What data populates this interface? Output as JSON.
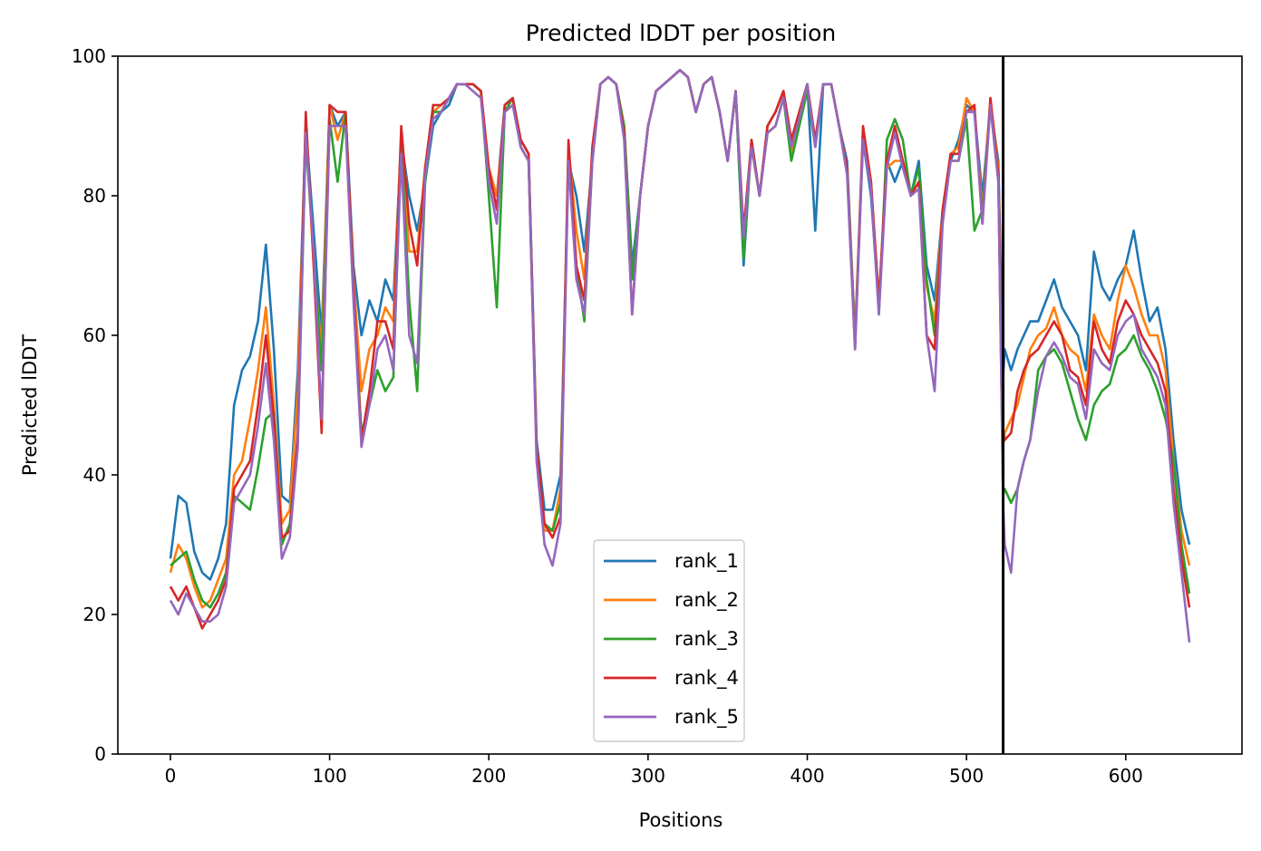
{
  "chart_data": {
    "type": "line",
    "title": "Predicted lDDT per position",
    "xlabel": "Positions",
    "ylabel": "Predicted lDDT",
    "xlim": [
      -33,
      673
    ],
    "ylim": [
      0,
      100
    ],
    "xticks": [
      0,
      100,
      200,
      300,
      400,
      500,
      600
    ],
    "yticks": [
      0,
      20,
      40,
      60,
      80,
      100
    ],
    "grid": false,
    "legend_position": "lower-center",
    "chain_break_x": 523,
    "chain_break_color": "#000000",
    "x_positions": [
      0,
      5,
      10,
      15,
      20,
      25,
      30,
      35,
      40,
      45,
      50,
      55,
      60,
      65,
      70,
      75,
      80,
      85,
      90,
      95,
      100,
      105,
      110,
      115,
      120,
      125,
      130,
      135,
      140,
      145,
      150,
      155,
      160,
      165,
      170,
      175,
      180,
      185,
      190,
      195,
      200,
      205,
      210,
      215,
      220,
      225,
      230,
      235,
      240,
      245,
      250,
      255,
      260,
      265,
      270,
      275,
      280,
      285,
      290,
      295,
      300,
      305,
      310,
      315,
      320,
      325,
      330,
      335,
      340,
      345,
      350,
      355,
      360,
      365,
      370,
      375,
      380,
      385,
      390,
      395,
      400,
      405,
      410,
      415,
      420,
      425,
      430,
      435,
      440,
      445,
      450,
      455,
      460,
      465,
      470,
      475,
      480,
      485,
      490,
      495,
      500,
      505,
      510,
      515,
      520,
      523,
      524,
      528,
      532,
      536,
      540,
      545,
      550,
      555,
      560,
      565,
      570,
      575,
      580,
      585,
      590,
      595,
      600,
      605,
      610,
      615,
      620,
      625,
      630,
      635,
      640
    ],
    "series": [
      {
        "name": "rank_1",
        "color": "#1f77b4",
        "values": [
          28,
          37,
          36,
          29,
          26,
          25,
          28,
          33,
          50,
          55,
          57,
          62,
          73,
          58,
          37,
          36,
          55,
          90,
          75,
          60,
          93,
          90,
          92,
          70,
          60,
          65,
          62,
          68,
          65,
          88,
          80,
          75,
          82,
          90,
          92,
          93,
          96,
          96,
          96,
          95,
          82,
          80,
          93,
          94,
          88,
          86,
          45,
          35,
          35,
          40,
          85,
          80,
          72,
          85,
          96,
          97,
          96,
          90,
          70,
          80,
          90,
          95,
          96,
          97,
          98,
          97,
          92,
          96,
          97,
          92,
          85,
          95,
          70,
          88,
          80,
          90,
          92,
          95,
          88,
          92,
          96,
          75,
          96,
          96,
          90,
          85,
          60,
          88,
          80,
          64,
          85,
          82,
          85,
          80,
          85,
          70,
          65,
          78,
          85,
          88,
          93,
          92,
          80,
          93,
          85,
          54,
          58,
          55,
          58,
          60,
          62,
          62,
          65,
          68,
          64,
          62,
          60,
          55,
          72,
          67,
          65,
          68,
          70,
          75,
          68,
          62,
          64,
          58,
          45,
          35,
          30
        ]
      },
      {
        "name": "rank_2",
        "color": "#ff7f0e",
        "values": [
          26,
          30,
          28,
          24,
          21,
          22,
          25,
          28,
          40,
          42,
          48,
          55,
          64,
          50,
          33,
          35,
          52,
          90,
          70,
          58,
          93,
          88,
          92,
          68,
          52,
          58,
          60,
          64,
          62,
          89,
          72,
          72,
          84,
          92,
          93,
          94,
          96,
          96,
          96,
          95,
          84,
          80,
          92,
          94,
          87,
          85,
          44,
          32,
          32,
          38,
          87,
          75,
          68,
          86,
          96,
          97,
          96,
          90,
          68,
          80,
          90,
          95,
          96,
          97,
          98,
          97,
          92,
          96,
          97,
          92,
          85,
          95,
          73,
          87,
          80,
          90,
          92,
          95,
          86,
          92,
          96,
          87,
          96,
          96,
          90,
          84,
          60,
          89,
          82,
          64,
          84,
          85,
          85,
          80,
          82,
          67,
          62,
          78,
          86,
          87,
          94,
          92,
          78,
          94,
          84,
          44,
          46,
          48,
          50,
          54,
          58,
          60,
          61,
          64,
          60,
          58,
          57,
          52,
          63,
          60,
          58,
          65,
          70,
          67,
          63,
          60,
          60,
          55,
          42,
          32,
          27
        ]
      },
      {
        "name": "rank_3",
        "color": "#2ca02c",
        "values": [
          27,
          28,
          29,
          25,
          22,
          21,
          23,
          26,
          37,
          36,
          35,
          41,
          48,
          49,
          30,
          33,
          45,
          88,
          72,
          55,
          91,
          82,
          92,
          66,
          46,
          50,
          55,
          52,
          54,
          88,
          65,
          52,
          82,
          92,
          92,
          94,
          96,
          96,
          96,
          95,
          80,
          64,
          92,
          94,
          87,
          85,
          44,
          33,
          32,
          36,
          86,
          70,
          62,
          85,
          96,
          97,
          96,
          90,
          68,
          80,
          90,
          95,
          96,
          97,
          98,
          97,
          92,
          96,
          97,
          92,
          85,
          95,
          71,
          88,
          80,
          89,
          90,
          94,
          85,
          90,
          95,
          87,
          96,
          96,
          90,
          84,
          59,
          88,
          82,
          63,
          88,
          91,
          88,
          80,
          84,
          68,
          60,
          77,
          85,
          85,
          91,
          75,
          78,
          93,
          82,
          37,
          38,
          36,
          38,
          42,
          45,
          55,
          57,
          58,
          56,
          52,
          48,
          45,
          50,
          52,
          53,
          57,
          58,
          60,
          57,
          55,
          52,
          48,
          42,
          30,
          23
        ]
      },
      {
        "name": "rank_4",
        "color": "#d62728",
        "values": [
          24,
          22,
          24,
          21,
          18,
          20,
          22,
          25,
          38,
          40,
          42,
          50,
          60,
          48,
          31,
          32,
          46,
          92,
          70,
          46,
          93,
          92,
          92,
          67,
          45,
          52,
          62,
          62,
          58,
          90,
          76,
          70,
          84,
          93,
          93,
          94,
          96,
          96,
          96,
          95,
          84,
          78,
          93,
          94,
          88,
          86,
          44,
          33,
          31,
          34,
          88,
          70,
          65,
          87,
          96,
          97,
          96,
          89,
          63,
          80,
          90,
          95,
          96,
          97,
          98,
          97,
          92,
          96,
          97,
          92,
          85,
          95,
          75,
          88,
          80,
          90,
          92,
          95,
          88,
          92,
          96,
          88,
          96,
          96,
          90,
          84,
          58,
          90,
          82,
          65,
          85,
          90,
          85,
          80,
          82,
          60,
          58,
          78,
          86,
          86,
          92,
          93,
          76,
          94,
          83,
          46,
          45,
          46,
          52,
          55,
          57,
          58,
          60,
          62,
          60,
          55,
          54,
          50,
          62,
          58,
          56,
          62,
          65,
          63,
          60,
          58,
          56,
          52,
          38,
          28,
          21
        ]
      },
      {
        "name": "rank_5",
        "color": "#9467bd",
        "values": [
          22,
          20,
          23,
          21,
          19,
          19,
          20,
          24,
          36,
          38,
          40,
          47,
          56,
          45,
          28,
          31,
          44,
          89,
          72,
          48,
          90,
          90,
          90,
          65,
          44,
          50,
          58,
          60,
          55,
          86,
          60,
          56,
          83,
          91,
          92,
          94,
          96,
          96,
          95,
          94,
          82,
          76,
          92,
          93,
          87,
          85,
          42,
          30,
          27,
          33,
          85,
          68,
          63,
          85,
          96,
          97,
          96,
          88,
          63,
          80,
          90,
          95,
          96,
          97,
          98,
          97,
          92,
          96,
          97,
          92,
          85,
          95,
          74,
          87,
          80,
          89,
          90,
          94,
          87,
          91,
          96,
          87,
          96,
          96,
          90,
          83,
          58,
          88,
          81,
          63,
          84,
          89,
          84,
          80,
          81,
          60,
          52,
          76,
          85,
          85,
          92,
          92,
          76,
          93,
          82,
          36,
          30,
          26,
          38,
          42,
          45,
          52,
          57,
          59,
          57,
          54,
          53,
          48,
          58,
          56,
          55,
          60,
          62,
          63,
          58,
          56,
          54,
          50,
          36,
          26,
          16
        ]
      }
    ]
  }
}
